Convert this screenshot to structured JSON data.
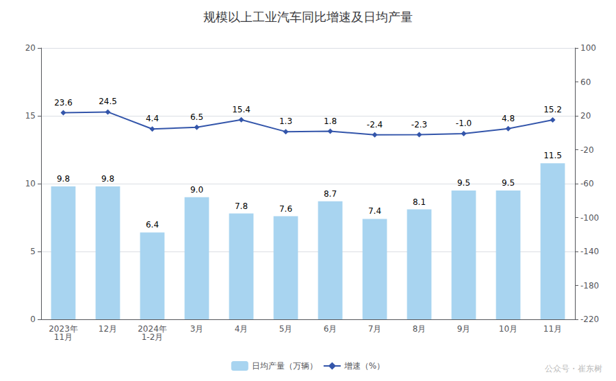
{
  "chart_data": {
    "type": "bar",
    "title": "规模以上工业汽车同比增速及日均产量",
    "categories": [
      "2023年\n11月",
      "12月",
      "2024年\n1-2月",
      "3月",
      "4月",
      "5月",
      "6月",
      "7月",
      "8月",
      "9月",
      "10月",
      "11月"
    ],
    "series": [
      {
        "name": "日均产量（万辆）",
        "type": "bar",
        "color": "#a8d4f0",
        "values": [
          9.8,
          9.8,
          6.4,
          9.0,
          7.8,
          7.6,
          8.7,
          7.4,
          8.1,
          9.5,
          9.5,
          11.5
        ],
        "value_labels": [
          "9.8",
          "9.8",
          "6.4",
          "9.0",
          "7.8",
          "7.6",
          "8.7",
          "7.4",
          "8.1",
          "9.5",
          "9.5",
          "11.5"
        ]
      },
      {
        "name": "增速（%）",
        "type": "line",
        "axis": "y2",
        "color": "#3355aa",
        "marker": "diamond",
        "values": [
          23.6,
          24.5,
          4.4,
          6.5,
          15.4,
          1.3,
          1.8,
          -2.4,
          -2.3,
          -1.0,
          4.8,
          15.2
        ],
        "value_labels": [
          "23.6",
          "24.5",
          "4.4",
          "6.5",
          "15.4",
          "1.3",
          "1.8",
          "-2.4",
          "-2.3",
          "-1.0",
          "4.8",
          "15.2"
        ]
      }
    ],
    "ylim": [
      0,
      20
    ],
    "yticks": [
      0,
      5,
      10,
      15,
      20
    ],
    "y2lim": [
      -220,
      100
    ],
    "y2ticks": [
      -220,
      -180,
      -140,
      -100,
      -60,
      -20,
      20,
      60,
      100
    ],
    "grid": true,
    "legend": "bottom",
    "data_labels": true,
    "annotations": [
      "公众号・崔东树"
    ]
  }
}
